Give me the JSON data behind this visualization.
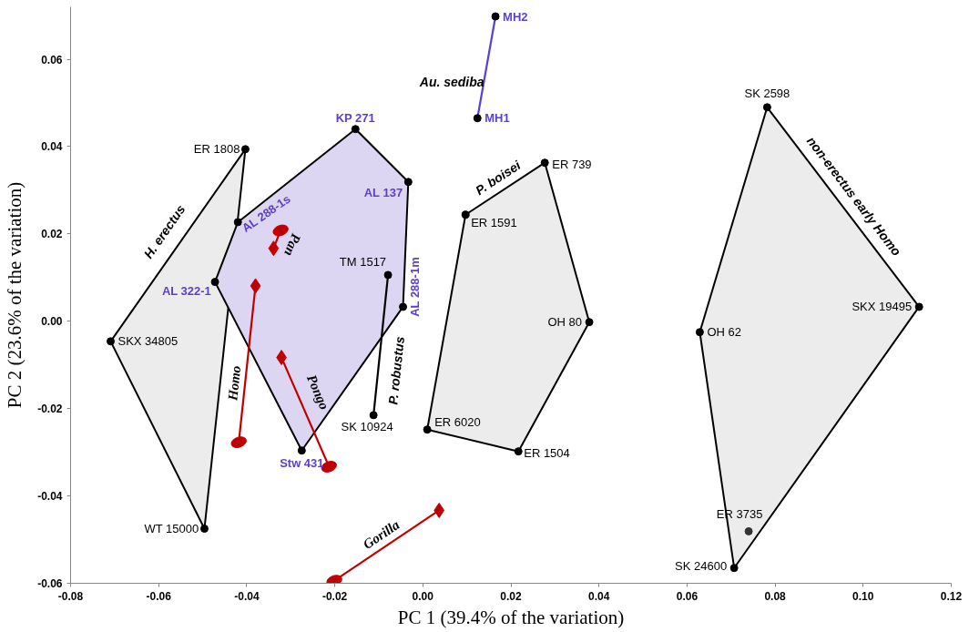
{
  "chart_data": {
    "type": "scatter",
    "xlabel": "PC 1 (39.4% of the variation)",
    "ylabel": "PC 2 (23.6% of the variation)",
    "xlim": [
      -0.08,
      0.12
    ],
    "ylim": [
      -0.06,
      0.072
    ],
    "xticks": [
      -0.08,
      -0.06,
      -0.04,
      -0.02,
      {
        "value": 0,
        "label": "0.00"
      },
      0.02,
      0.04,
      0.06,
      0.08,
      {
        "value": 0.1,
        "label": "0.10"
      },
      0.12
    ],
    "yticks": [
      -0.06,
      -0.04,
      -0.02,
      {
        "value": 0,
        "label": "0.00"
      },
      0.02,
      0.04,
      0.06
    ],
    "grid": false,
    "series": [
      {
        "type": "area",
        "name": "H. erectus",
        "color": "#ececec",
        "marker": "circle",
        "x": [
          -0.0403,
          -0.0709,
          -0.0496
        ],
        "values": [
          0.0394,
          -0.0046,
          -0.0475
        ],
        "value_labels": [
          "ER 1808",
          "SKX 34805",
          "WT 15000"
        ]
      },
      {
        "type": "area",
        "color": "#ddd6f3",
        "marker": "circle",
        "x": [
          -0.042,
          -0.0153,
          -0.0033,
          -0.0045,
          -0.0275,
          -0.0472
        ],
        "values": [
          0.0227,
          0.044,
          0.0319,
          0.0033,
          -0.0296,
          0.009
        ],
        "value_labels": [
          "AL 288-1s",
          "KP 271",
          "AL 137",
          "AL 288-1m",
          "Stw 431",
          "AL 322-1"
        ]
      },
      {
        "type": "line",
        "name": "P. robustus",
        "color": "#000000",
        "marker": "circle",
        "x": [
          -0.0079,
          -0.0112
        ],
        "values": [
          0.0106,
          -0.0215
        ],
        "value_labels": [
          "TM 1517",
          "SK 10924"
        ]
      },
      {
        "type": "line",
        "name": "Au. sediba",
        "color": "#5b3fd9",
        "marker": "circle",
        "x": [
          0.0165,
          0.0124
        ],
        "values": [
          0.0698,
          0.0465
        ],
        "value_labels": [
          "MH2",
          "MH1"
        ]
      },
      {
        "type": "area",
        "name": "P. boisei",
        "color": "#ececec",
        "marker": "circle",
        "x": [
          0.0097,
          0.0277,
          0.0378,
          0.0217,
          0.001
        ],
        "values": [
          0.0244,
          0.0363,
          -0.0002,
          -0.0298,
          -0.0248
        ],
        "value_labels": [
          "ER 1591",
          "ER 739",
          "OH 80",
          "ER 1504",
          "ER 6020"
        ]
      },
      {
        "type": "area",
        "name": "non-erectus early Homo",
        "color": "#ececec",
        "marker": "circle",
        "x": [
          0.0782,
          0.1127,
          0.0707,
          0.0629
        ],
        "values": [
          0.049,
          0.0033,
          -0.0565,
          -0.0025
        ],
        "value_labels": [
          "SK 2598",
          "SKX 19495",
          "SK 24600",
          "OH 62"
        ]
      },
      {
        "color": "#333333",
        "marker": "circle",
        "x": [
          0.074
        ],
        "values": [
          -0.0481
        ],
        "value_labels": [
          "ER 3735"
        ]
      },
      {
        "type": "line",
        "name": "Pan",
        "color": "#c00000",
        "marker": "none",
        "x": [
          -0.0339,
          -0.0323
        ],
        "values": [
          0.0167,
          0.0208
        ]
      },
      {
        "type": "line",
        "name": "Homo",
        "color": "#c00000",
        "marker": "none",
        "x": [
          -0.038,
          -0.0418
        ],
        "values": [
          0.0081,
          -0.0277
        ]
      },
      {
        "type": "line",
        "name": "Pongo",
        "color": "#c00000",
        "marker": "none",
        "x": [
          -0.0321,
          -0.0213
        ],
        "values": [
          -0.0083,
          -0.0333
        ]
      },
      {
        "type": "line",
        "name": "Gorilla",
        "color": "#c00000",
        "marker": "none",
        "x": [
          0.0037,
          -0.0201
        ],
        "values": [
          -0.0433,
          -0.0594
        ]
      },
      {
        "color": "#c00000",
        "marker": "diamond",
        "x": [
          -0.0339,
          -0.038,
          -0.0321,
          0.0037
        ],
        "values": [
          0.0167,
          0.0081,
          -0.0083,
          -0.0433
        ]
      },
      {
        "color": "#c00000",
        "marker": "circle",
        "x": [
          -0.0323,
          -0.0418,
          -0.0213,
          -0.0201
        ],
        "values": [
          0.0208,
          -0.0277,
          -0.0333,
          -0.0594
        ]
      }
    ]
  }
}
